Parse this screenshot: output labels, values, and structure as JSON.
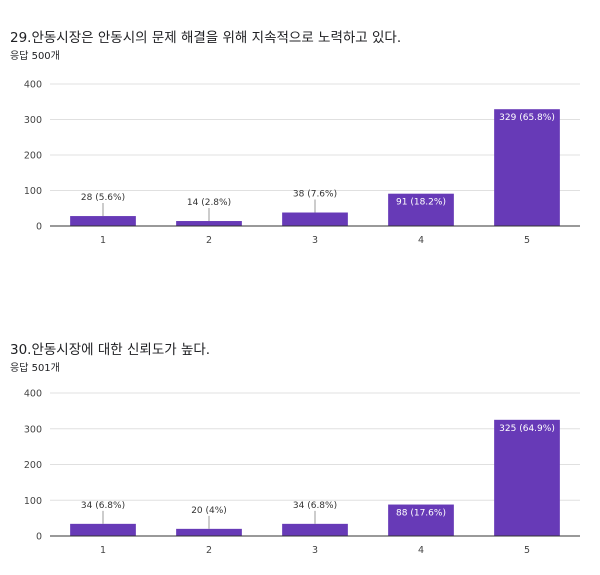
{
  "colors": {
    "bar": "#673ab7",
    "grid": "#e0e0e0",
    "axis": "#333333"
  },
  "chart_data": [
    {
      "type": "bar",
      "title": "29.안동시장은 안동시의 문제 해결을 위해 지속적으로 노력하고 있다.",
      "response_count": "응답 500개",
      "categories": [
        "1",
        "2",
        "3",
        "4",
        "5"
      ],
      "values": [
        28,
        14,
        38,
        91,
        329
      ],
      "data_labels": [
        "28 (5.6%)",
        "14 (2.8%)",
        "38 (7.6%)",
        "91 (18.2%)",
        "329 (65.8%)"
      ],
      "y_ticks": [
        "0",
        "100",
        "200",
        "300",
        "400"
      ],
      "ylim": [
        0,
        400
      ],
      "grid": true,
      "xlabel": "",
      "ylabel": ""
    },
    {
      "type": "bar",
      "title": "30.안동시장에 대한 신뢰도가 높다.",
      "response_count": "응답 501개",
      "categories": [
        "1",
        "2",
        "3",
        "4",
        "5"
      ],
      "values": [
        34,
        20,
        34,
        88,
        325
      ],
      "data_labels": [
        "34 (6.8%)",
        "20 (4%)",
        "34 (6.8%)",
        "88 (17.6%)",
        "325 (64.9%)"
      ],
      "y_ticks": [
        "0",
        "100",
        "200",
        "300",
        "400"
      ],
      "ylim": [
        0,
        400
      ],
      "grid": true,
      "xlabel": "",
      "ylabel": ""
    }
  ]
}
